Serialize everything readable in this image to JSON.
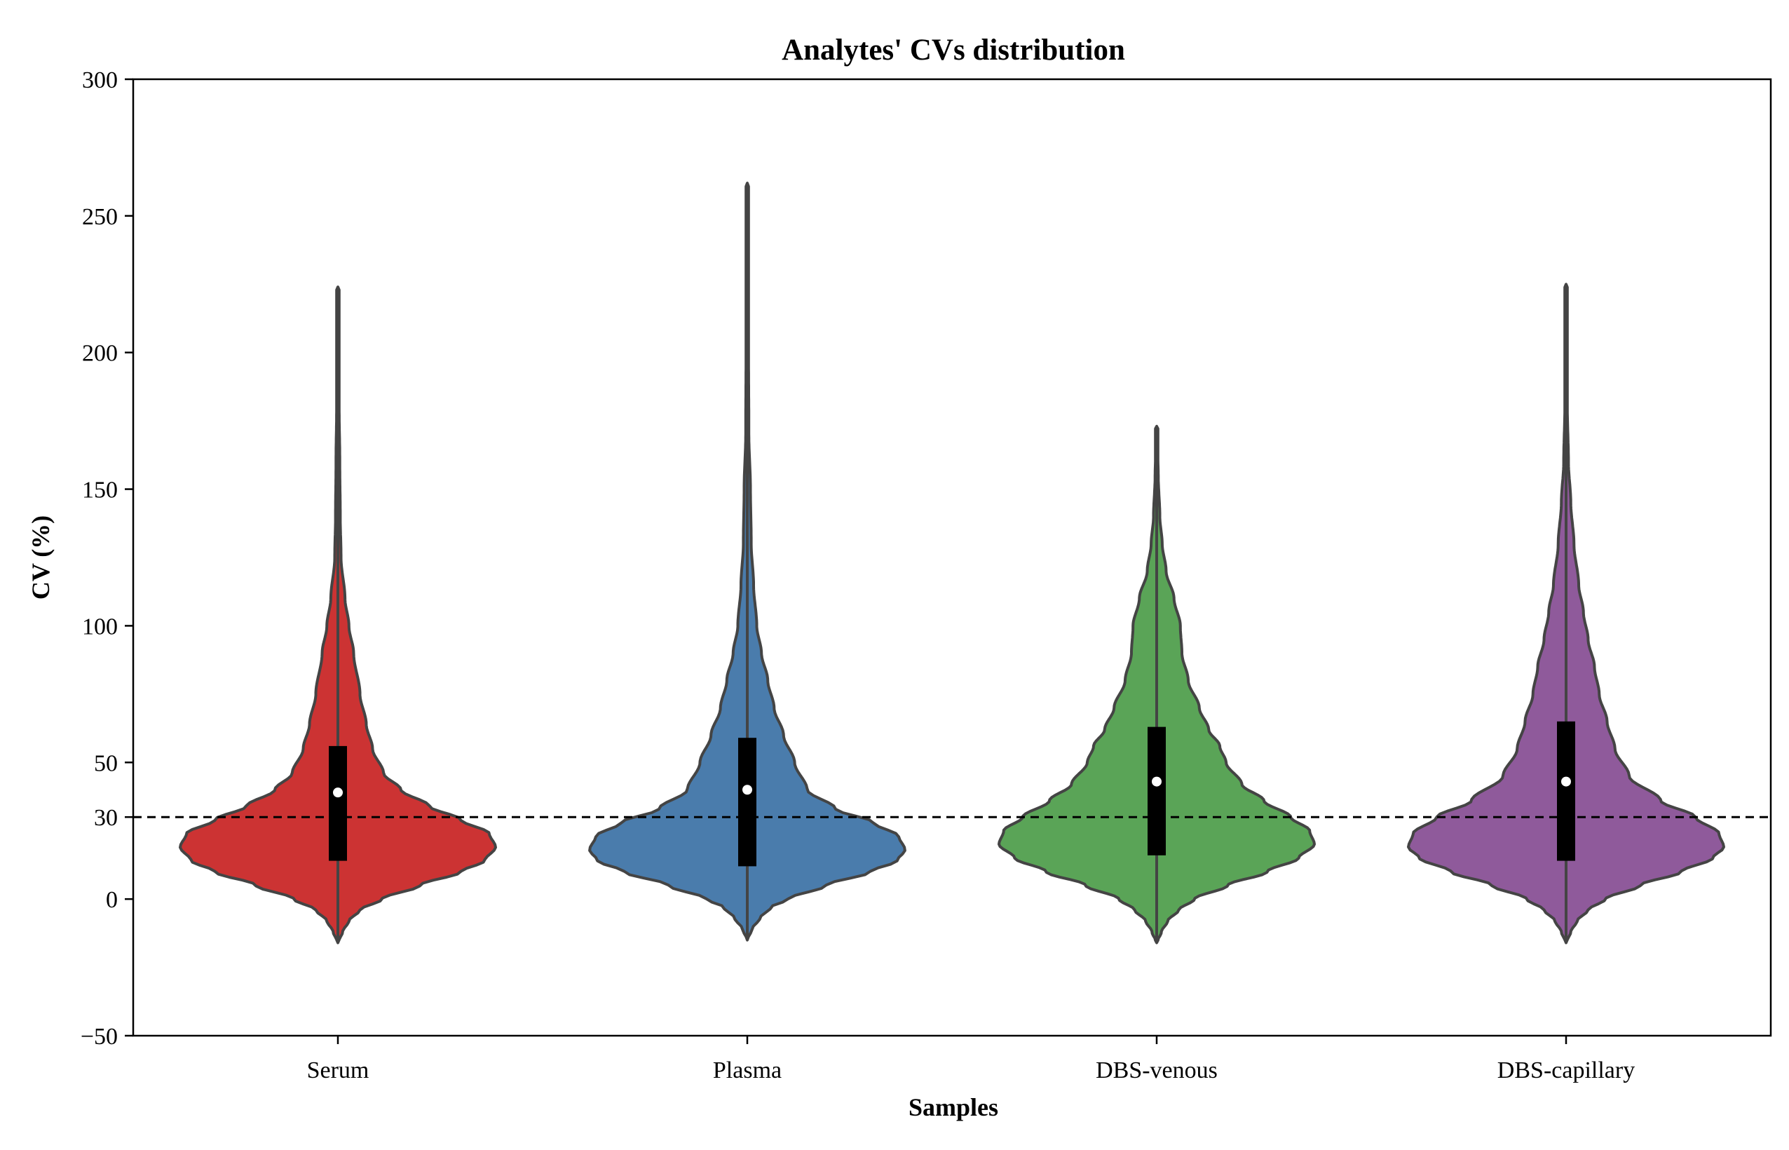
{
  "chart_data": {
    "type": "violin",
    "title": "Analytes' CVs distribution",
    "xlabel": "Samples",
    "ylabel": "CV (%)",
    "ylim": [
      -50,
      300
    ],
    "yticks": [
      -50,
      0,
      30,
      50,
      100,
      150,
      200,
      250,
      300
    ],
    "categories": [
      "Serum",
      "Plasma",
      "DBS-venous",
      "DBS-capillary"
    ],
    "colors": [
      "#cc3333",
      "#4a7cac",
      "#5aa457",
      "#8f5a9b"
    ],
    "reference_line": {
      "value": 30,
      "style": "dashed"
    },
    "grid": false,
    "legend": "none",
    "series": [
      {
        "name": "Serum",
        "min": -16,
        "max": 224,
        "q1": 14,
        "q3": 56,
        "median": 39,
        "density": [
          [
            -16,
            0.0
          ],
          [
            -12,
            0.03
          ],
          [
            -8,
            0.07
          ],
          [
            -4,
            0.14
          ],
          [
            0,
            0.28
          ],
          [
            5,
            0.52
          ],
          [
            10,
            0.78
          ],
          [
            14,
            0.93
          ],
          [
            19,
            1.0
          ],
          [
            24,
            0.96
          ],
          [
            29,
            0.78
          ],
          [
            34,
            0.58
          ],
          [
            40,
            0.4
          ],
          [
            46,
            0.29
          ],
          [
            55,
            0.22
          ],
          [
            64,
            0.18
          ],
          [
            75,
            0.14
          ],
          [
            90,
            0.1
          ],
          [
            100,
            0.07
          ],
          [
            110,
            0.045
          ],
          [
            125,
            0.02
          ],
          [
            140,
            0.015
          ],
          [
            160,
            0.012
          ],
          [
            180,
            0.008
          ],
          [
            200,
            0.006
          ],
          [
            224,
            0.0
          ]
        ]
      },
      {
        "name": "Plasma",
        "min": -15,
        "max": 262,
        "q1": 12,
        "q3": 59,
        "median": 40,
        "density": [
          [
            -15,
            0.0
          ],
          [
            -11,
            0.03
          ],
          [
            -7,
            0.08
          ],
          [
            -3,
            0.15
          ],
          [
            0,
            0.26
          ],
          [
            5,
            0.5
          ],
          [
            10,
            0.78
          ],
          [
            14,
            0.95
          ],
          [
            18,
            1.0
          ],
          [
            23,
            0.96
          ],
          [
            28,
            0.8
          ],
          [
            33,
            0.56
          ],
          [
            40,
            0.38
          ],
          [
            50,
            0.3
          ],
          [
            60,
            0.23
          ],
          [
            70,
            0.17
          ],
          [
            80,
            0.13
          ],
          [
            90,
            0.09
          ],
          [
            100,
            0.06
          ],
          [
            115,
            0.04
          ],
          [
            130,
            0.025
          ],
          [
            150,
            0.02
          ],
          [
            170,
            0.01
          ],
          [
            200,
            0.008
          ],
          [
            230,
            0.006
          ],
          [
            262,
            0.0
          ]
        ]
      },
      {
        "name": "DBS-venous",
        "min": -16,
        "max": 173,
        "q1": 16,
        "q3": 63,
        "median": 43,
        "density": [
          [
            -16,
            0.0
          ],
          [
            -12,
            0.03
          ],
          [
            -8,
            0.07
          ],
          [
            -4,
            0.14
          ],
          [
            0,
            0.24
          ],
          [
            5,
            0.45
          ],
          [
            10,
            0.7
          ],
          [
            15,
            0.9
          ],
          [
            20,
            1.0
          ],
          [
            25,
            0.97
          ],
          [
            30,
            0.85
          ],
          [
            36,
            0.68
          ],
          [
            42,
            0.54
          ],
          [
            50,
            0.44
          ],
          [
            56,
            0.4
          ],
          [
            62,
            0.33
          ],
          [
            70,
            0.27
          ],
          [
            80,
            0.2
          ],
          [
            90,
            0.16
          ],
          [
            100,
            0.15
          ],
          [
            110,
            0.11
          ],
          [
            120,
            0.06
          ],
          [
            130,
            0.035
          ],
          [
            140,
            0.02
          ],
          [
            155,
            0.01
          ],
          [
            173,
            0.0
          ]
        ]
      },
      {
        "name": "DBS-capillary",
        "min": -16,
        "max": 225,
        "q1": 14,
        "q3": 65,
        "median": 43,
        "density": [
          [
            -16,
            0.0
          ],
          [
            -12,
            0.03
          ],
          [
            -8,
            0.07
          ],
          [
            -4,
            0.14
          ],
          [
            0,
            0.25
          ],
          [
            5,
            0.47
          ],
          [
            10,
            0.73
          ],
          [
            15,
            0.93
          ],
          [
            19,
            1.0
          ],
          [
            24,
            0.97
          ],
          [
            30,
            0.82
          ],
          [
            36,
            0.6
          ],
          [
            45,
            0.4
          ],
          [
            55,
            0.31
          ],
          [
            65,
            0.26
          ],
          [
            75,
            0.21
          ],
          [
            85,
            0.18
          ],
          [
            95,
            0.14
          ],
          [
            105,
            0.11
          ],
          [
            115,
            0.08
          ],
          [
            130,
            0.05
          ],
          [
            145,
            0.03
          ],
          [
            160,
            0.015
          ],
          [
            180,
            0.008
          ],
          [
            200,
            0.005
          ],
          [
            225,
            0.0
          ]
        ]
      }
    ]
  }
}
